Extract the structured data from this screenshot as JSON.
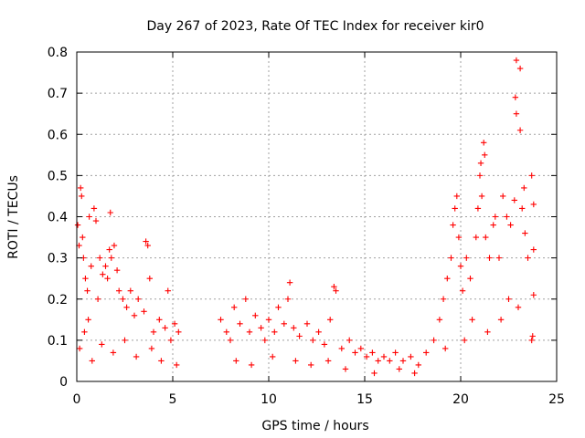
{
  "chart_data": {
    "type": "scatter",
    "title": "Day 267 of 2023, Rate Of TEC Index for receiver kir0",
    "xlabel": "GPS time / hours",
    "ylabel": "ROTI / TECUs",
    "xlim": [
      0,
      25
    ],
    "ylim": [
      0,
      0.8
    ],
    "xticks": [
      0,
      5,
      10,
      15,
      20,
      25
    ],
    "yticks": [
      0,
      0.1,
      0.2,
      0.3,
      0.4,
      0.5,
      0.6,
      0.7,
      0.8
    ],
    "xtick_labels": [
      "0",
      "5",
      "10",
      "15",
      "20",
      "25"
    ],
    "ytick_labels": [
      "0",
      "0.1",
      "0.2",
      "0.3",
      "0.4",
      "0.5",
      "0.6",
      "0.7",
      "0.8"
    ],
    "grid": true,
    "marker": "+",
    "color": "#ff0000",
    "series": [
      {
        "points": [
          [
            0.05,
            0.38
          ],
          [
            0.12,
            0.33
          ],
          [
            0.2,
            0.47
          ],
          [
            0.25,
            0.45
          ],
          [
            0.3,
            0.35
          ],
          [
            0.35,
            0.3
          ],
          [
            0.45,
            0.25
          ],
          [
            0.55,
            0.22
          ],
          [
            0.65,
            0.4
          ],
          [
            0.75,
            0.28
          ],
          [
            0.9,
            0.42
          ],
          [
            1.0,
            0.39
          ],
          [
            1.1,
            0.2
          ],
          [
            1.2,
            0.3
          ],
          [
            1.35,
            0.26
          ],
          [
            1.5,
            0.28
          ],
          [
            1.6,
            0.25
          ],
          [
            1.7,
            0.32
          ],
          [
            1.8,
            0.3
          ],
          [
            1.75,
            0.41
          ],
          [
            1.95,
            0.33
          ],
          [
            2.1,
            0.27
          ],
          [
            2.2,
            0.22
          ],
          [
            2.4,
            0.2
          ],
          [
            2.6,
            0.18
          ],
          [
            2.8,
            0.22
          ],
          [
            3.0,
            0.16
          ],
          [
            3.2,
            0.2
          ],
          [
            3.5,
            0.17
          ],
          [
            3.6,
            0.34
          ],
          [
            3.7,
            0.33
          ],
          [
            3.8,
            0.25
          ],
          [
            4.0,
            0.12
          ],
          [
            4.3,
            0.15
          ],
          [
            4.6,
            0.13
          ],
          [
            4.75,
            0.22
          ],
          [
            4.9,
            0.1
          ],
          [
            5.1,
            0.14
          ],
          [
            5.3,
            0.12
          ],
          [
            0.15,
            0.08
          ],
          [
            0.4,
            0.12
          ],
          [
            0.8,
            0.05
          ],
          [
            1.3,
            0.09
          ],
          [
            1.9,
            0.07
          ],
          [
            2.5,
            0.1
          ],
          [
            3.1,
            0.06
          ],
          [
            3.9,
            0.08
          ],
          [
            4.4,
            0.05
          ],
          [
            5.2,
            0.04
          ],
          [
            0.6,
            0.15
          ],
          [
            7.5,
            0.15
          ],
          [
            7.8,
            0.12
          ],
          [
            8.0,
            0.1
          ],
          [
            8.2,
            0.18
          ],
          [
            8.5,
            0.14
          ],
          [
            8.8,
            0.2
          ],
          [
            9.0,
            0.12
          ],
          [
            9.3,
            0.16
          ],
          [
            9.6,
            0.13
          ],
          [
            9.8,
            0.1
          ],
          [
            10.0,
            0.15
          ],
          [
            10.3,
            0.12
          ],
          [
            10.5,
            0.18
          ],
          [
            10.8,
            0.14
          ],
          [
            11.0,
            0.2
          ],
          [
            11.1,
            0.24
          ],
          [
            11.3,
            0.13
          ],
          [
            11.6,
            0.11
          ],
          [
            12.0,
            0.14
          ],
          [
            12.3,
            0.1
          ],
          [
            12.6,
            0.12
          ],
          [
            12.9,
            0.09
          ],
          [
            13.2,
            0.15
          ],
          [
            13.4,
            0.23
          ],
          [
            13.5,
            0.22
          ],
          [
            13.8,
            0.08
          ],
          [
            14.2,
            0.1
          ],
          [
            14.5,
            0.07
          ],
          [
            14.8,
            0.08
          ],
          [
            15.1,
            0.06
          ],
          [
            15.4,
            0.07
          ],
          [
            15.7,
            0.05
          ],
          [
            16.0,
            0.06
          ],
          [
            16.3,
            0.05
          ],
          [
            16.6,
            0.07
          ],
          [
            17.0,
            0.05
          ],
          [
            17.4,
            0.06
          ],
          [
            17.8,
            0.04
          ],
          [
            18.2,
            0.07
          ],
          [
            18.6,
            0.1
          ],
          [
            8.3,
            0.05
          ],
          [
            9.1,
            0.04
          ],
          [
            10.2,
            0.06
          ],
          [
            11.4,
            0.05
          ],
          [
            12.2,
            0.04
          ],
          [
            13.1,
            0.05
          ],
          [
            14.0,
            0.03
          ],
          [
            15.5,
            0.02
          ],
          [
            16.8,
            0.03
          ],
          [
            17.6,
            0.02
          ],
          [
            18.9,
            0.15
          ],
          [
            19.1,
            0.2
          ],
          [
            19.3,
            0.25
          ],
          [
            19.5,
            0.3
          ],
          [
            19.6,
            0.38
          ],
          [
            19.7,
            0.42
          ],
          [
            19.8,
            0.45
          ],
          [
            19.9,
            0.35
          ],
          [
            20.0,
            0.28
          ],
          [
            20.1,
            0.22
          ],
          [
            20.3,
            0.3
          ],
          [
            20.5,
            0.25
          ],
          [
            20.6,
            0.15
          ],
          [
            20.8,
            0.35
          ],
          [
            20.9,
            0.42
          ],
          [
            21.0,
            0.5
          ],
          [
            21.05,
            0.53
          ],
          [
            21.1,
            0.45
          ],
          [
            21.2,
            0.58
          ],
          [
            21.25,
            0.55
          ],
          [
            21.3,
            0.35
          ],
          [
            21.5,
            0.3
          ],
          [
            21.7,
            0.38
          ],
          [
            21.8,
            0.4
          ],
          [
            22.0,
            0.3
          ],
          [
            22.2,
            0.45
          ],
          [
            22.4,
            0.4
          ],
          [
            22.6,
            0.38
          ],
          [
            22.8,
            0.44
          ],
          [
            22.9,
            0.78
          ],
          [
            22.85,
            0.69
          ],
          [
            22.9,
            0.65
          ],
          [
            23.1,
            0.76
          ],
          [
            23.1,
            0.61
          ],
          [
            23.2,
            0.42
          ],
          [
            23.3,
            0.47
          ],
          [
            23.35,
            0.36
          ],
          [
            23.5,
            0.3
          ],
          [
            23.7,
            0.5
          ],
          [
            23.8,
            0.43
          ],
          [
            23.8,
            0.21
          ],
          [
            23.75,
            0.11
          ],
          [
            23.7,
            0.1
          ],
          [
            23.8,
            0.32
          ],
          [
            19.2,
            0.08
          ],
          [
            20.2,
            0.1
          ],
          [
            21.4,
            0.12
          ],
          [
            22.1,
            0.15
          ],
          [
            22.5,
            0.2
          ],
          [
            23.0,
            0.18
          ]
        ]
      }
    ]
  }
}
